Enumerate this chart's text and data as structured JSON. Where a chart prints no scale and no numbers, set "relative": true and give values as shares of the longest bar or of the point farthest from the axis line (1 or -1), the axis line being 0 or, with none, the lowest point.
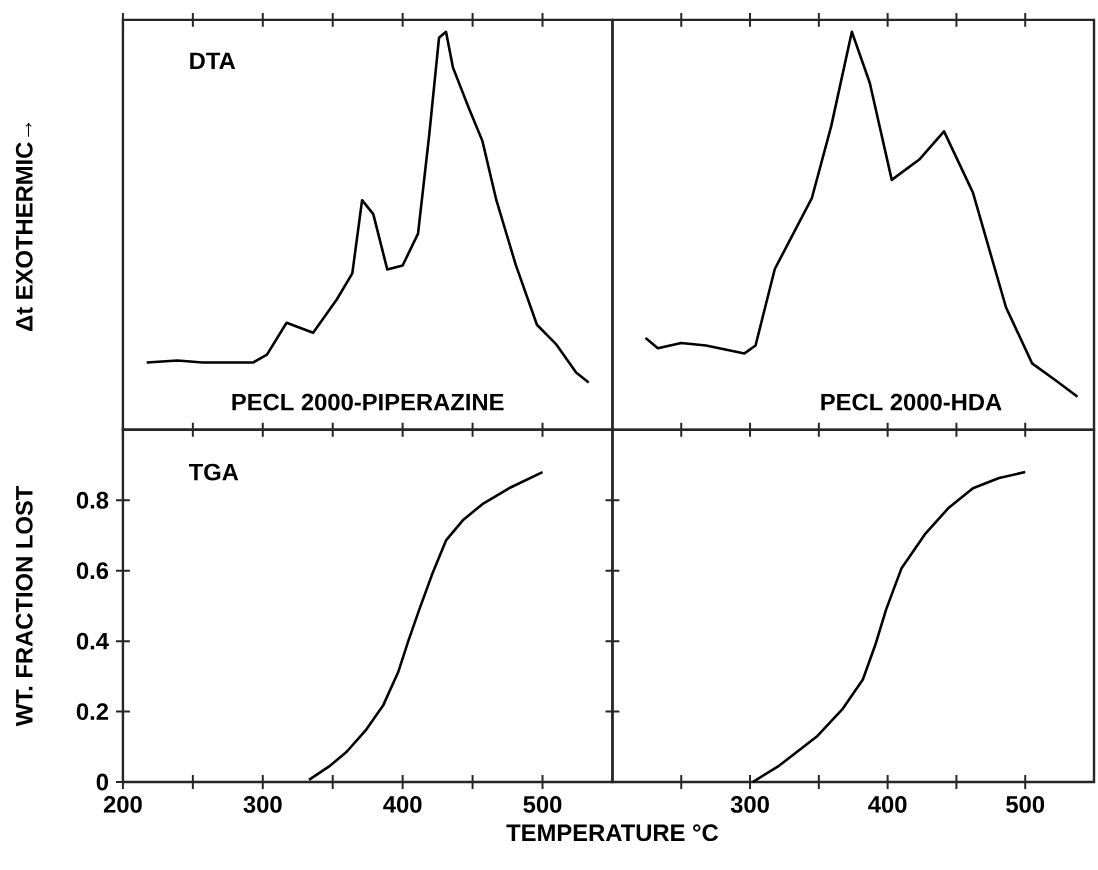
{
  "chart_data": [
    {
      "type": "line",
      "relative": true,
      "ylabel": "Δt EXOTHERMIC→",
      "annotations": [
        "DTA",
        "PECL 2000-PIPERAZINE"
      ],
      "xlim": [
        200,
        550
      ],
      "xticks": [
        200,
        250,
        300,
        350,
        400,
        450,
        500
      ],
      "tick_labels": false,
      "x": [
        217,
        239,
        257,
        293,
        303,
        317,
        336,
        353,
        364,
        371,
        379,
        389,
        400,
        411,
        419,
        426,
        431,
        436,
        447,
        457,
        467,
        481,
        496,
        510,
        524,
        533
      ],
      "series": [
        {
          "color": "#000000",
          "values": [
            0.169,
            0.174,
            0.169,
            0.169,
            0.189,
            0.269,
            0.244,
            0.328,
            0.393,
            0.577,
            0.542,
            0.403,
            0.413,
            0.493,
            0.741,
            0.985,
            1.0,
            0.91,
            0.811,
            0.726,
            0.577,
            0.413,
            0.264,
            0.214,
            0.144,
            0.119
          ]
        }
      ]
    },
    {
      "type": "line",
      "relative": true,
      "annotations": [
        "PECL 2000-HDA"
      ],
      "xlim": [
        200,
        550
      ],
      "xticks": [
        250,
        300,
        350,
        400,
        450,
        500
      ],
      "tick_labels": false,
      "x": [
        224,
        233,
        250,
        268,
        296,
        304,
        318,
        345,
        359,
        374,
        387,
        403,
        423,
        441,
        462,
        486,
        505,
        523,
        538
      ],
      "series": [
        {
          "color": "#000000",
          "values": [
            0.231,
            0.205,
            0.218,
            0.212,
            0.192,
            0.212,
            0.404,
            0.583,
            0.763,
            1.0,
            0.872,
            0.628,
            0.679,
            0.75,
            0.596,
            0.308,
            0.167,
            0.122,
            0.083
          ]
        }
      ]
    },
    {
      "type": "line",
      "ylabel": "WT. FRACTION LOST",
      "xlabel": "TEMPERATURE °C",
      "annotations": [
        "TGA"
      ],
      "xlim": [
        200,
        550
      ],
      "ylim": [
        0,
        1.0
      ],
      "xticks": [
        200,
        {
          "value": 250,
          "label": null
        },
        300,
        {
          "value": 350,
          "label": null
        },
        400,
        {
          "value": 450,
          "label": null
        },
        500
      ],
      "yticks": [
        0,
        0.2,
        0.4,
        0.6,
        0.8
      ],
      "x": [
        333,
        348,
        360,
        374,
        386,
        397,
        404,
        412,
        421,
        431,
        443,
        457,
        476,
        500
      ],
      "series": [
        {
          "color": "#000000",
          "values": [
            0.006,
            0.046,
            0.086,
            0.149,
            0.217,
            0.314,
            0.4,
            0.491,
            0.589,
            0.686,
            0.743,
            0.789,
            0.834,
            0.88
          ]
        }
      ]
    },
    {
      "type": "line",
      "xlim": [
        200,
        550
      ],
      "ylim": [
        0,
        1.0
      ],
      "tick_labels": "x",
      "xticks": [
        {
          "value": 250,
          "label": null
        },
        300,
        {
          "value": 350,
          "label": null
        },
        400,
        {
          "value": 450,
          "label": null
        },
        500
      ],
      "yticks": [
        0,
        0.2,
        0.4,
        0.6,
        0.8
      ],
      "x": [
        302,
        321,
        349,
        367,
        382,
        391,
        399,
        410,
        427,
        444,
        462,
        481,
        500
      ],
      "series": [
        {
          "color": "#000000",
          "values": [
            0,
            0.046,
            0.131,
            0.206,
            0.291,
            0.389,
            0.491,
            0.606,
            0.703,
            0.777,
            0.834,
            0.863,
            0.88
          ]
        }
      ]
    }
  ]
}
